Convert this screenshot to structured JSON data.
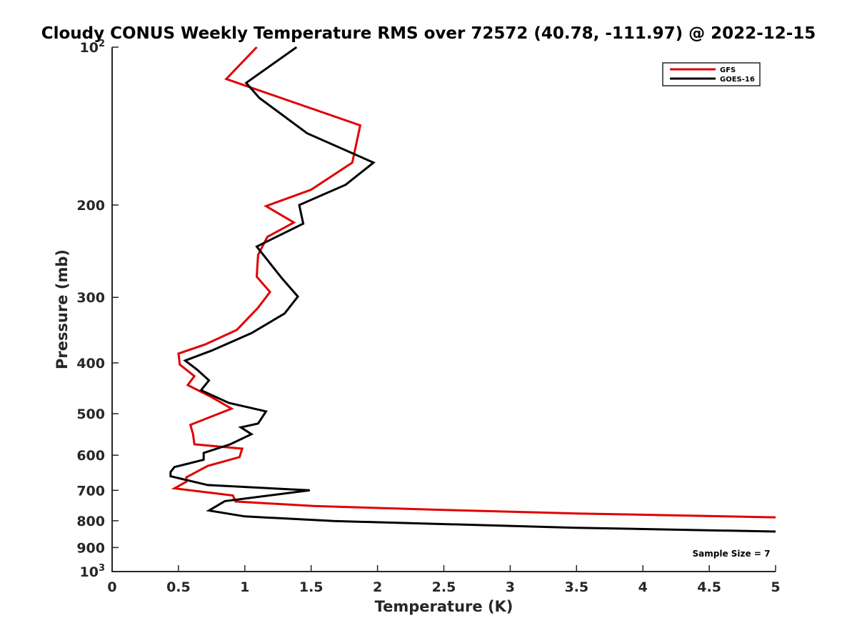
{
  "chart_data": {
    "type": "line",
    "title": "Cloudy CONUS Weekly Temperature RMS over 72572 (40.78, -111.97) @ 2022-12-15",
    "xlabel": "Temperature (K)",
    "ylabel": "Pressure (mb)",
    "xlim": [
      0,
      5
    ],
    "ylim": [
      100,
      1000
    ],
    "yscale": "log",
    "y_reversed": true,
    "xticks": [
      0,
      0.5,
      1,
      1.5,
      2,
      2.5,
      3,
      3.5,
      4,
      4.5,
      5
    ],
    "xtick_labels": [
      "0",
      "0.5",
      "1",
      "1.5",
      "2",
      "2.5",
      "3",
      "3.5",
      "4",
      "4.5",
      "5"
    ],
    "yticks": [
      {
        "value": 100,
        "base": "10",
        "exp": "2"
      },
      {
        "value": 200,
        "label": "200"
      },
      {
        "value": 300,
        "label": "300"
      },
      {
        "value": 400,
        "label": "400"
      },
      {
        "value": 500,
        "label": "500"
      },
      {
        "value": 600,
        "label": "600"
      },
      {
        "value": 700,
        "label": "700"
      },
      {
        "value": 800,
        "label": "800"
      },
      {
        "value": 900,
        "label": "900"
      },
      {
        "value": 1000,
        "base": "10",
        "exp": "3"
      }
    ],
    "grid": false,
    "legend_position": "top-right",
    "series": [
      {
        "name": "GFS",
        "color": "#e00000",
        "points": [
          [
            1.09,
            100
          ],
          [
            0.86,
            115
          ],
          [
            1.87,
            141
          ],
          [
            1.81,
            166
          ],
          [
            1.5,
            187
          ],
          [
            1.16,
            201
          ],
          [
            1.37,
            216
          ],
          [
            1.17,
            230
          ],
          [
            1.1,
            249
          ],
          [
            1.09,
            274
          ],
          [
            1.19,
            293
          ],
          [
            1.1,
            314
          ],
          [
            0.94,
            346
          ],
          [
            0.7,
            369
          ],
          [
            0.5,
            384
          ],
          [
            0.51,
            403
          ],
          [
            0.62,
            424
          ],
          [
            0.57,
            441
          ],
          [
            0.75,
            465
          ],
          [
            0.9,
            489
          ],
          [
            0.59,
            525
          ],
          [
            0.61,
            547
          ],
          [
            0.62,
            572
          ],
          [
            0.98,
            583
          ],
          [
            0.96,
            605
          ],
          [
            0.72,
            629
          ],
          [
            0.56,
            661
          ],
          [
            0.56,
            674
          ],
          [
            0.47,
            694
          ],
          [
            0.91,
            716
          ],
          [
            0.93,
            735
          ],
          [
            1.52,
            750
          ],
          [
            2.5,
            763
          ],
          [
            3.5,
            775
          ],
          [
            5.0,
            788
          ]
        ]
      },
      {
        "name": "GOES-16",
        "color": "#000000",
        "points": [
          [
            1.39,
            100
          ],
          [
            1.01,
            117
          ],
          [
            1.11,
            125
          ],
          [
            1.47,
            146
          ],
          [
            1.97,
            166
          ],
          [
            1.76,
            183
          ],
          [
            1.41,
            200
          ],
          [
            1.44,
            217
          ],
          [
            1.09,
            240
          ],
          [
            1.28,
            276
          ],
          [
            1.4,
            299
          ],
          [
            1.3,
            322
          ],
          [
            1.05,
            351
          ],
          [
            0.75,
            379
          ],
          [
            0.55,
            396
          ],
          [
            0.64,
            412
          ],
          [
            0.73,
            432
          ],
          [
            0.67,
            451
          ],
          [
            0.88,
            477
          ],
          [
            1.16,
            495
          ],
          [
            1.1,
            522
          ],
          [
            0.97,
            531
          ],
          [
            1.05,
            547
          ],
          [
            0.89,
            572
          ],
          [
            0.69,
            594
          ],
          [
            0.69,
            612
          ],
          [
            0.47,
            632
          ],
          [
            0.44,
            646
          ],
          [
            0.44,
            658
          ],
          [
            0.72,
            684
          ],
          [
            1.49,
            700
          ],
          [
            0.85,
            734
          ],
          [
            0.73,
            765
          ],
          [
            1.0,
            785
          ],
          [
            1.67,
            801
          ],
          [
            3.5,
            825
          ],
          [
            5.0,
            839
          ]
        ]
      }
    ],
    "annotations": [
      {
        "text": "Sample Size = 7",
        "x": 4.4,
        "y": 925
      }
    ]
  }
}
